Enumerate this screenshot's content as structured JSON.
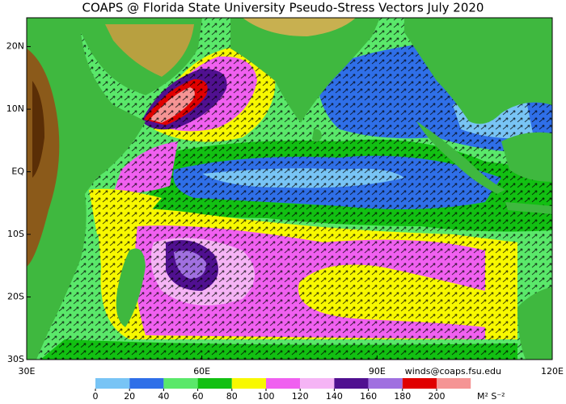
{
  "title": "COAPS @ Florida State University Pseudo-Stress Vectors July 2020",
  "map": {
    "lonlim": [
      30,
      120
    ],
    "latlim": [
      -30,
      24.6
    ],
    "lon_ticks": [
      {
        "value": 30,
        "label": "30E"
      },
      {
        "value": 60,
        "label": "60E"
      },
      {
        "value": 90,
        "label": "90E"
      },
      {
        "value": 120,
        "label": "120E"
      }
    ],
    "lat_ticks": [
      {
        "value": 20,
        "label": "20N"
      },
      {
        "value": 10,
        "label": "10N"
      },
      {
        "value": 0,
        "label": "EQ"
      },
      {
        "value": -10,
        "label": "10S"
      },
      {
        "value": -20,
        "label": "20S"
      },
      {
        "value": -30,
        "label": "30S"
      }
    ]
  },
  "credit": "winds@coaps.fsu.edu",
  "colorbar": {
    "ticks": [
      0,
      20,
      40,
      60,
      80,
      100,
      120,
      140,
      160,
      180,
      200
    ],
    "colors": [
      "#78c4f5",
      "#2f6fe8",
      "#5ae86a",
      "#12c012",
      "#f8f800",
      "#f060f0",
      "#f5b4f5",
      "#501090",
      "#a070e0",
      "#e00000",
      "#f59494"
    ],
    "unit": "M² S⁻²"
  }
}
